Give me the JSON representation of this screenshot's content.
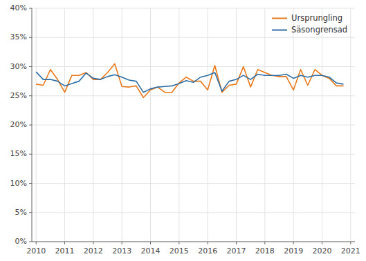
{
  "chart_data": {
    "type": "line",
    "x": [
      2010,
      2010.25,
      2010.5,
      2010.75,
      2011,
      2011.25,
      2011.5,
      2011.75,
      2012,
      2012.25,
      2012.5,
      2012.75,
      2013,
      2013.25,
      2013.5,
      2013.75,
      2014,
      2014.25,
      2014.5,
      2014.75,
      2015,
      2015.25,
      2015.5,
      2015.75,
      2016,
      2016.25,
      2016.5,
      2016.75,
      2017,
      2017.25,
      2017.5,
      2017.75,
      2018,
      2018.25,
      2018.5,
      2018.75,
      2019,
      2019.25,
      2019.5,
      2019.75,
      2020,
      2020.25,
      2020.5,
      2020.75
    ],
    "series": [
      {
        "name": "Ursprungling",
        "color": "#E8781A",
        "values": [
          0.27,
          0.268,
          0.295,
          0.278,
          0.256,
          0.285,
          0.285,
          0.29,
          0.278,
          0.278,
          0.29,
          0.305,
          0.266,
          0.265,
          0.267,
          0.247,
          0.26,
          0.265,
          0.256,
          0.256,
          0.272,
          0.282,
          0.275,
          0.275,
          0.26,
          0.302,
          0.256,
          0.268,
          0.27,
          0.3,
          0.265,
          0.295,
          0.29,
          0.285,
          0.283,
          0.283,
          0.26,
          0.295,
          0.268,
          0.295,
          0.285,
          0.28,
          0.267,
          0.267
        ]
      },
      {
        "name": "Säsongrensad",
        "color": "#2E6EA6",
        "values": [
          0.291,
          0.278,
          0.278,
          0.275,
          0.267,
          0.271,
          0.275,
          0.289,
          0.28,
          0.278,
          0.283,
          0.286,
          0.282,
          0.277,
          0.275,
          0.256,
          0.262,
          0.265,
          0.266,
          0.267,
          0.271,
          0.276,
          0.273,
          0.282,
          0.285,
          0.29,
          0.258,
          0.275,
          0.278,
          0.285,
          0.278,
          0.287,
          0.285,
          0.285,
          0.285,
          0.287,
          0.28,
          0.285,
          0.282,
          0.285,
          0.285,
          0.282,
          0.272,
          0.27
        ]
      }
    ],
    "xlim": [
      2009.85,
      2021.15
    ],
    "xticks": [
      2010,
      2011,
      2012,
      2013,
      2014,
      2015,
      2016,
      2017,
      2018,
      2019,
      2020,
      2021
    ],
    "ylim": [
      0.0,
      0.4
    ],
    "yticks": [
      {
        "value": 0.0,
        "label": "0%"
      },
      {
        "value": 0.05,
        "label": "5%"
      },
      {
        "value": 0.1,
        "label": "10%"
      },
      {
        "value": 0.15,
        "label": "15%"
      },
      {
        "value": 0.2,
        "label": "20%"
      },
      {
        "value": 0.25,
        "label": "25%"
      },
      {
        "value": 0.3,
        "label": "30%"
      },
      {
        "value": 0.35,
        "label": "35%"
      },
      {
        "value": 0.4,
        "label": "40%"
      }
    ],
    "grid": true,
    "legend": "upper right"
  }
}
